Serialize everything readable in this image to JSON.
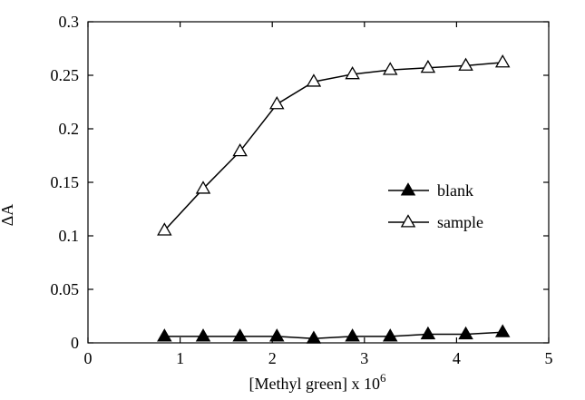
{
  "chart_data": {
    "type": "line",
    "title": "",
    "xlabel": "[Methyl green] x 10",
    "xlabel_superscript": "6",
    "ylabel": "ΔA",
    "xlim": [
      0,
      5
    ],
    "ylim": [
      0,
      0.3
    ],
    "x_ticks": [
      "0",
      "1",
      "2",
      "3",
      "4",
      "5"
    ],
    "y_ticks": [
      "0",
      "0.05",
      "0.1",
      "0.15",
      "0.2",
      "0.25",
      "0.3"
    ],
    "grid": false,
    "legend_position": "right-middle",
    "series": [
      {
        "name": "blank",
        "marker": "filled-triangle",
        "color": "#000000",
        "x": [
          0.83,
          1.25,
          1.65,
          2.05,
          2.45,
          2.87,
          3.28,
          3.69,
          4.1,
          4.5
        ],
        "y": [
          0.006,
          0.006,
          0.006,
          0.006,
          0.004,
          0.006,
          0.006,
          0.008,
          0.008,
          0.01
        ]
      },
      {
        "name": "sample",
        "marker": "open-triangle",
        "color": "#000000",
        "x": [
          0.83,
          1.25,
          1.65,
          2.05,
          2.45,
          2.87,
          3.28,
          3.69,
          4.1,
          4.5
        ],
        "y": [
          0.105,
          0.144,
          0.179,
          0.223,
          0.244,
          0.251,
          0.255,
          0.257,
          0.259,
          0.262
        ]
      }
    ]
  }
}
